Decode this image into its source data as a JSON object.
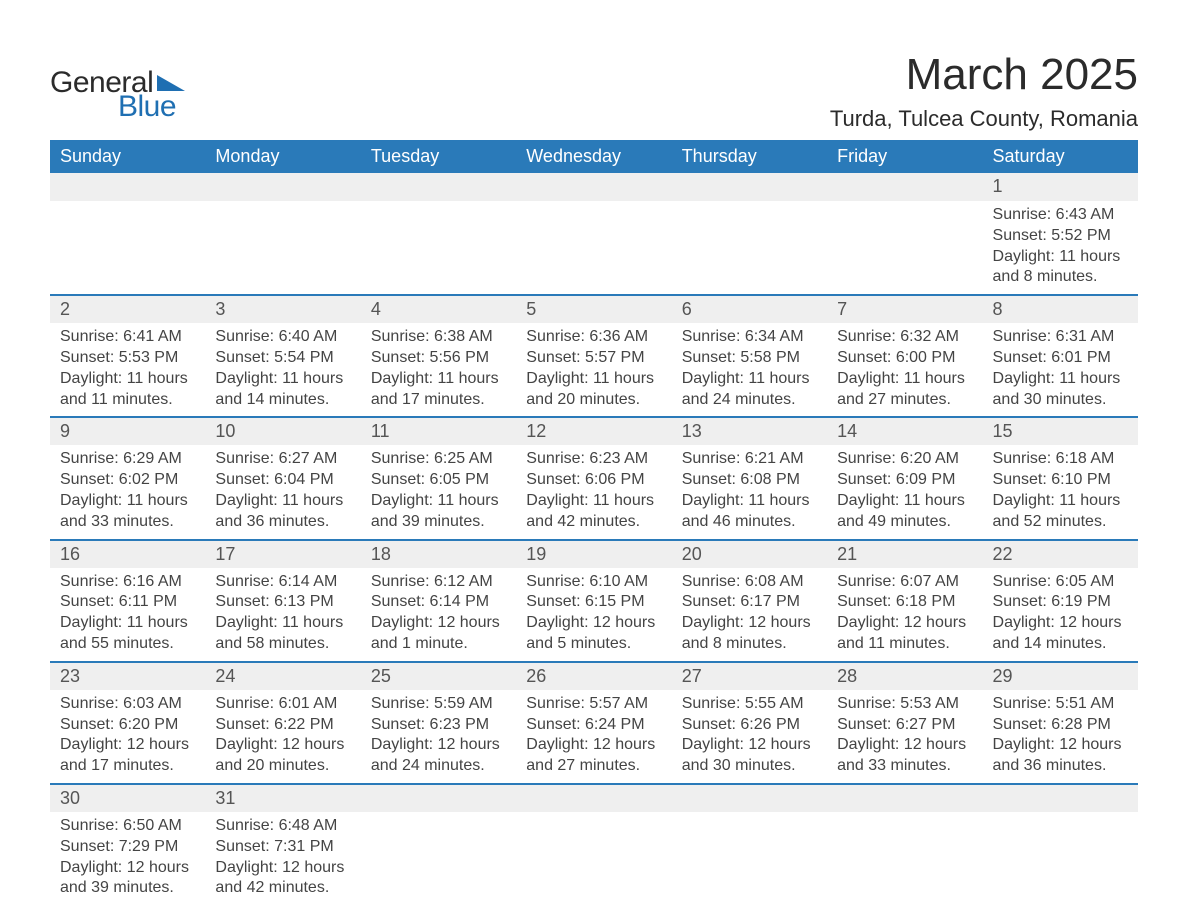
{
  "brand": {
    "name_part1": "General",
    "name_part2": "Blue",
    "text_color": "#2b2b2b",
    "accent_color": "#1f6fb2"
  },
  "title": {
    "month_year": "March 2025",
    "location": "Turda, Tulcea County, Romania",
    "title_fontsize": 44,
    "location_fontsize": 22
  },
  "colors": {
    "header_bg": "#2a7ab9",
    "header_text": "#ffffff",
    "daynum_bg": "#efefef",
    "row_divider": "#2a7ab9",
    "body_text": "#444444",
    "page_bg": "#ffffff"
  },
  "calendar": {
    "days_of_week": [
      "Sunday",
      "Monday",
      "Tuesday",
      "Wednesday",
      "Thursday",
      "Friday",
      "Saturday"
    ],
    "field_labels": {
      "sunrise": "Sunrise",
      "sunset": "Sunset",
      "daylight": "Daylight"
    },
    "weeks": [
      [
        null,
        null,
        null,
        null,
        null,
        null,
        {
          "n": "1",
          "sunrise": "6:43 AM",
          "sunset": "5:52 PM",
          "daylight": "11 hours and 8 minutes."
        }
      ],
      [
        {
          "n": "2",
          "sunrise": "6:41 AM",
          "sunset": "5:53 PM",
          "daylight": "11 hours and 11 minutes."
        },
        {
          "n": "3",
          "sunrise": "6:40 AM",
          "sunset": "5:54 PM",
          "daylight": "11 hours and 14 minutes."
        },
        {
          "n": "4",
          "sunrise": "6:38 AM",
          "sunset": "5:56 PM",
          "daylight": "11 hours and 17 minutes."
        },
        {
          "n": "5",
          "sunrise": "6:36 AM",
          "sunset": "5:57 PM",
          "daylight": "11 hours and 20 minutes."
        },
        {
          "n": "6",
          "sunrise": "6:34 AM",
          "sunset": "5:58 PM",
          "daylight": "11 hours and 24 minutes."
        },
        {
          "n": "7",
          "sunrise": "6:32 AM",
          "sunset": "6:00 PM",
          "daylight": "11 hours and 27 minutes."
        },
        {
          "n": "8",
          "sunrise": "6:31 AM",
          "sunset": "6:01 PM",
          "daylight": "11 hours and 30 minutes."
        }
      ],
      [
        {
          "n": "9",
          "sunrise": "6:29 AM",
          "sunset": "6:02 PM",
          "daylight": "11 hours and 33 minutes."
        },
        {
          "n": "10",
          "sunrise": "6:27 AM",
          "sunset": "6:04 PM",
          "daylight": "11 hours and 36 minutes."
        },
        {
          "n": "11",
          "sunrise": "6:25 AM",
          "sunset": "6:05 PM",
          "daylight": "11 hours and 39 minutes."
        },
        {
          "n": "12",
          "sunrise": "6:23 AM",
          "sunset": "6:06 PM",
          "daylight": "11 hours and 42 minutes."
        },
        {
          "n": "13",
          "sunrise": "6:21 AM",
          "sunset": "6:08 PM",
          "daylight": "11 hours and 46 minutes."
        },
        {
          "n": "14",
          "sunrise": "6:20 AM",
          "sunset": "6:09 PM",
          "daylight": "11 hours and 49 minutes."
        },
        {
          "n": "15",
          "sunrise": "6:18 AM",
          "sunset": "6:10 PM",
          "daylight": "11 hours and 52 minutes."
        }
      ],
      [
        {
          "n": "16",
          "sunrise": "6:16 AM",
          "sunset": "6:11 PM",
          "daylight": "11 hours and 55 minutes."
        },
        {
          "n": "17",
          "sunrise": "6:14 AM",
          "sunset": "6:13 PM",
          "daylight": "11 hours and 58 minutes."
        },
        {
          "n": "18",
          "sunrise": "6:12 AM",
          "sunset": "6:14 PM",
          "daylight": "12 hours and 1 minute."
        },
        {
          "n": "19",
          "sunrise": "6:10 AM",
          "sunset": "6:15 PM",
          "daylight": "12 hours and 5 minutes."
        },
        {
          "n": "20",
          "sunrise": "6:08 AM",
          "sunset": "6:17 PM",
          "daylight": "12 hours and 8 minutes."
        },
        {
          "n": "21",
          "sunrise": "6:07 AM",
          "sunset": "6:18 PM",
          "daylight": "12 hours and 11 minutes."
        },
        {
          "n": "22",
          "sunrise": "6:05 AM",
          "sunset": "6:19 PM",
          "daylight": "12 hours and 14 minutes."
        }
      ],
      [
        {
          "n": "23",
          "sunrise": "6:03 AM",
          "sunset": "6:20 PM",
          "daylight": "12 hours and 17 minutes."
        },
        {
          "n": "24",
          "sunrise": "6:01 AM",
          "sunset": "6:22 PM",
          "daylight": "12 hours and 20 minutes."
        },
        {
          "n": "25",
          "sunrise": "5:59 AM",
          "sunset": "6:23 PM",
          "daylight": "12 hours and 24 minutes."
        },
        {
          "n": "26",
          "sunrise": "5:57 AM",
          "sunset": "6:24 PM",
          "daylight": "12 hours and 27 minutes."
        },
        {
          "n": "27",
          "sunrise": "5:55 AM",
          "sunset": "6:26 PM",
          "daylight": "12 hours and 30 minutes."
        },
        {
          "n": "28",
          "sunrise": "5:53 AM",
          "sunset": "6:27 PM",
          "daylight": "12 hours and 33 minutes."
        },
        {
          "n": "29",
          "sunrise": "5:51 AM",
          "sunset": "6:28 PM",
          "daylight": "12 hours and 36 minutes."
        }
      ],
      [
        {
          "n": "30",
          "sunrise": "6:50 AM",
          "sunset": "7:29 PM",
          "daylight": "12 hours and 39 minutes."
        },
        {
          "n": "31",
          "sunrise": "6:48 AM",
          "sunset": "7:31 PM",
          "daylight": "12 hours and 42 minutes."
        },
        null,
        null,
        null,
        null,
        null
      ]
    ]
  }
}
